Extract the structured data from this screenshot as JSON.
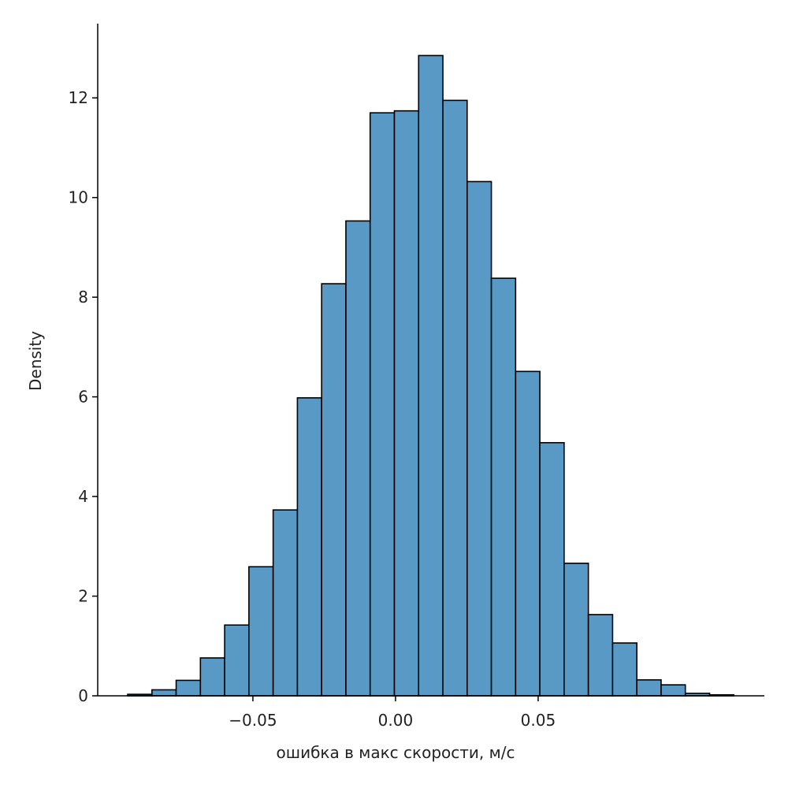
{
  "chart_data": {
    "type": "histogram",
    "xlabel": "ошибка в макс скорости, м/с",
    "ylabel": "Density",
    "bins": [
      -0.0939,
      -0.0854,
      -0.0769,
      -0.0684,
      -0.0599,
      -0.0514,
      -0.0429,
      -0.0344,
      -0.0259,
      -0.0174,
      -0.0089,
      -0.0004,
      0.0081,
      0.0166,
      0.0251,
      0.0336,
      0.0421,
      0.0506,
      0.0591,
      0.0676,
      0.0761,
      0.0846,
      0.0931,
      0.1016,
      0.1101,
      0.1186
    ],
    "values": [
      0.03,
      0.12,
      0.31,
      0.76,
      1.42,
      2.59,
      3.73,
      5.98,
      8.27,
      9.53,
      11.7,
      11.74,
      12.85,
      11.95,
      10.32,
      8.38,
      6.51,
      5.08,
      2.66,
      1.63,
      1.06,
      0.32,
      0.22,
      0.05,
      0.02
    ],
    "color": "#5899c6",
    "xlim": [
      -0.1044,
      0.1293
    ],
    "ylim": [
      0,
      13.49
    ],
    "xticks": [
      {
        "value": -0.05,
        "label": "−0.05"
      },
      {
        "value": 0,
        "label": "0.00"
      },
      0.05
    ],
    "yticks": [
      0,
      2,
      4,
      6,
      8,
      10,
      12
    ]
  }
}
